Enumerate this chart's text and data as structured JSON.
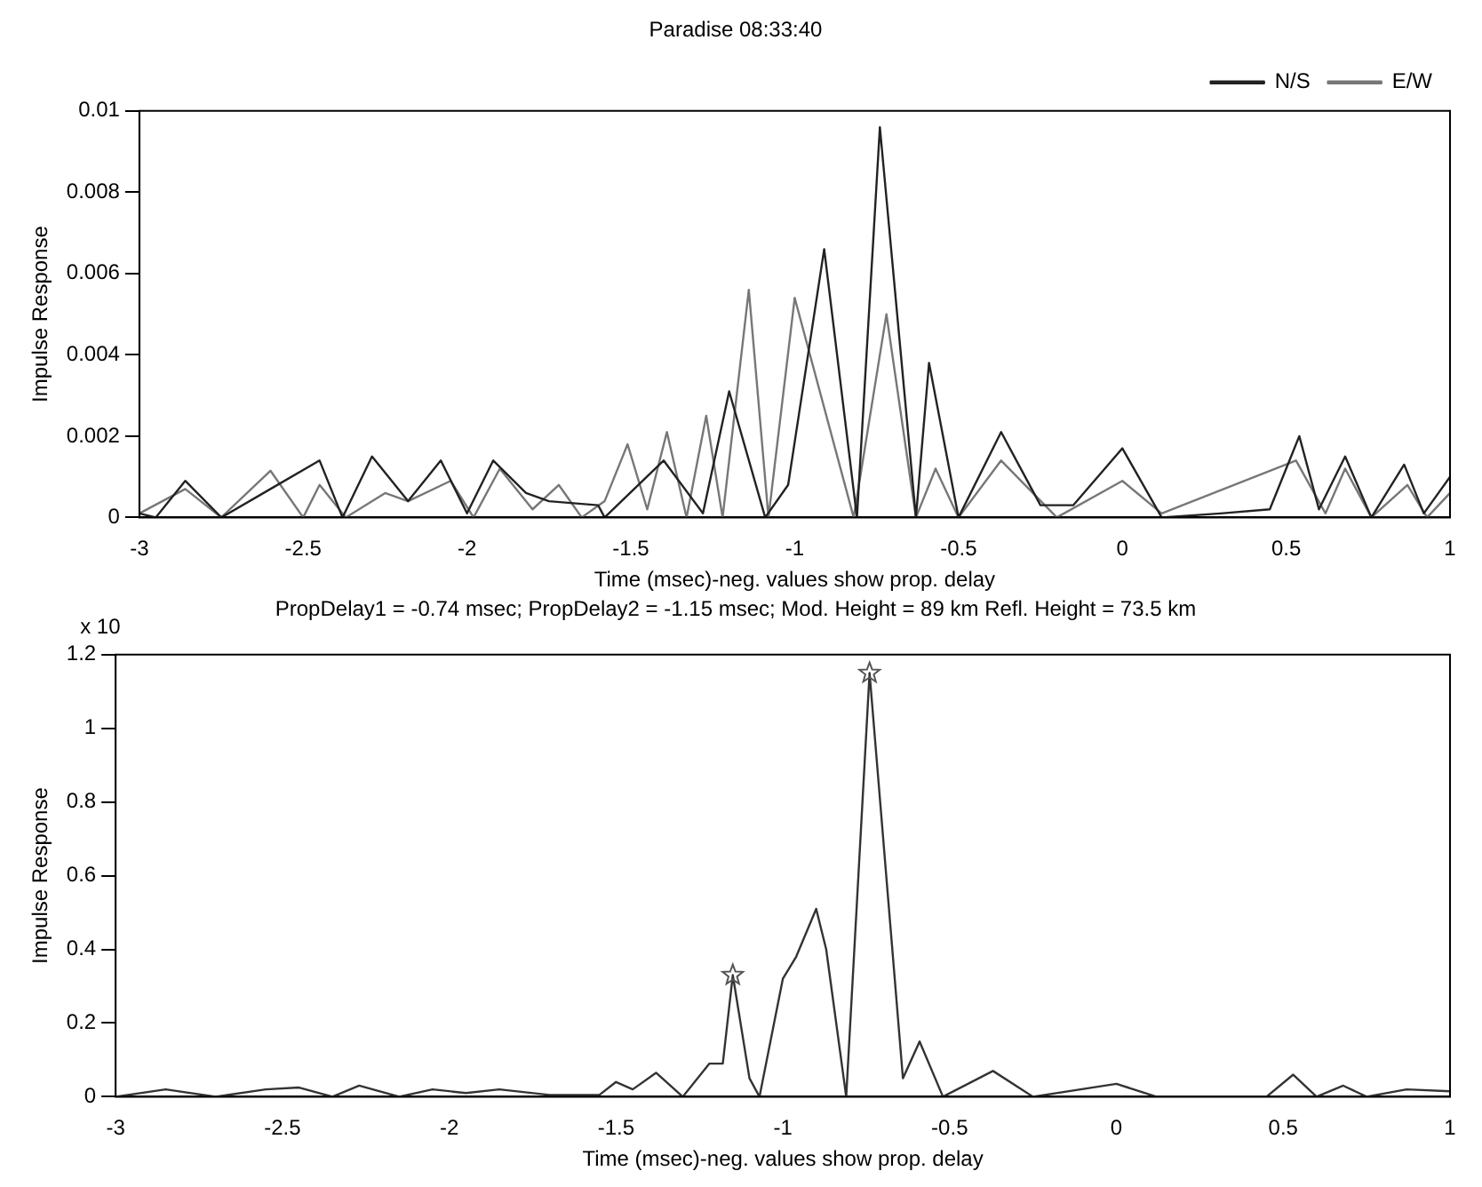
{
  "chart_data": [
    {
      "type": "line",
      "title": "Paradise 08:33:40",
      "xlabel": "Time (msec)-neg. values show prop. delay",
      "ylabel": "Impulse Response",
      "xlim": [
        -3,
        1
      ],
      "xticks": [
        -3,
        -2.5,
        -2,
        -1.5,
        -1,
        -0.5,
        0,
        0.5,
        1
      ],
      "ylim": [
        0,
        0.01
      ],
      "yticks": [
        0,
        0.002,
        0.004,
        0.006,
        0.008,
        0.01
      ],
      "legend": "top right",
      "marker": "none",
      "line_style": "solid",
      "series": [
        {
          "name": "N/S",
          "color": "#222222",
          "x": [
            -3,
            -2.95,
            -2.86,
            -2.75,
            -2.6,
            -2.45,
            -2.38,
            -2.29,
            -2.18,
            -2.08,
            -2,
            -1.92,
            -1.82,
            -1.75,
            -1.6,
            -1.58,
            -1.4,
            -1.28,
            -1.2,
            -1.09,
            -1.02,
            -0.91,
            -0.81,
            -0.74,
            -0.63,
            -0.59,
            -0.5,
            -0.37,
            -0.25,
            -0.15,
            0,
            0.12,
            0.3,
            0.45,
            0.54,
            0.6,
            0.68,
            0.76,
            0.86,
            0.92,
            1
          ],
          "values": [
            0.0001,
            0,
            0.0009,
            0,
            0.0007,
            0.0014,
            0,
            0.0015,
            0.0004,
            0.0014,
            0.0001,
            0.0014,
            0.0006,
            0.0004,
            0.0003,
            0,
            0.0014,
            0.0001,
            0.0031,
            0,
            0.0008,
            0.0066,
            0,
            0.0096,
            0,
            0.0038,
            0,
            0.0021,
            0.0003,
            0.0003,
            0.0017,
            0,
            0.0001,
            0.0002,
            0.002,
            0.0002,
            0.0015,
            0,
            0.0013,
            0.0001,
            0.001
          ]
        },
        {
          "name": "E/W",
          "color": "#777777",
          "x": [
            -3,
            -2.86,
            -2.75,
            -2.6,
            -2.5,
            -2.45,
            -2.37,
            -2.25,
            -2.18,
            -2.05,
            -1.98,
            -1.9,
            -1.8,
            -1.72,
            -1.65,
            -1.58,
            -1.51,
            -1.45,
            -1.39,
            -1.33,
            -1.27,
            -1.22,
            -1.14,
            -1.08,
            -1,
            -0.82,
            -0.72,
            -0.63,
            -0.57,
            -0.5,
            -0.37,
            -0.2,
            0,
            0.12,
            0.53,
            0.62,
            0.68,
            0.76,
            0.87,
            0.93,
            1
          ],
          "values": [
            0.0001,
            0.0007,
            0,
            0.00115,
            0,
            0.0008,
            0,
            0.0006,
            0.0004,
            0.0009,
            0,
            0.0012,
            0.0002,
            0.0008,
            0,
            0.0004,
            0.0018,
            0.0002,
            0.0021,
            0,
            0.0025,
            0,
            0.0056,
            0,
            0.0054,
            0,
            0.005,
            0,
            0.0012,
            0,
            0.0014,
            0,
            0.0009,
            0.0001,
            0.0014,
            0.0001,
            0.0012,
            0,
            0.0008,
            0,
            0.0006
          ]
        }
      ]
    },
    {
      "type": "line",
      "title": "PropDelay1 = -0.74 msec; PropDelay2 = -1.15 msec; Mod. Height = 89 km Refl. Height = 73.5 km",
      "xlabel": "Time (msec)-neg. values show prop. delay",
      "ylabel": "Impulse Response",
      "annotations": [
        "x 10"
      ],
      "xlim": [
        -3,
        1
      ],
      "xticks": [
        -3,
        -2.5,
        -2,
        -1.5,
        -1,
        -0.5,
        0,
        0.5,
        1
      ],
      "ylim": [
        0,
        1.2
      ],
      "yticks": [
        0,
        0.2,
        0.4,
        0.6,
        0.8,
        1,
        1.2
      ],
      "marker": "none",
      "line_style": "solid",
      "series": [
        {
          "color": "#333333",
          "x": [
            -3,
            -2.85,
            -2.7,
            -2.55,
            -2.45,
            -2.35,
            -2.27,
            -2.15,
            -2.05,
            -1.95,
            -1.85,
            -1.7,
            -1.55,
            -1.5,
            -1.45,
            -1.38,
            -1.3,
            -1.22,
            -1.18,
            -1.15,
            -1.1,
            -1.07,
            -1,
            -0.96,
            -0.9,
            -0.87,
            -0.81,
            -0.74,
            -0.64,
            -0.59,
            -0.52,
            -0.37,
            -0.25,
            0,
            0.12,
            0.45,
            0.53,
            0.6,
            0.68,
            0.75,
            0.87,
            1
          ],
          "values": [
            0,
            0.02,
            0,
            0.02,
            0.025,
            0,
            0.03,
            0,
            0.02,
            0.01,
            0.02,
            0.005,
            0.005,
            0.04,
            0.02,
            0.065,
            0,
            0.09,
            0.09,
            0.33,
            0.05,
            0,
            0.32,
            0.38,
            0.51,
            0.4,
            0,
            1.15,
            0.05,
            0.15,
            0,
            0.07,
            0,
            0.035,
            0,
            0,
            0.06,
            0,
            0.03,
            0,
            0.02,
            0.015
          ]
        },
        {
          "type": "scatter",
          "color": "#555555",
          "marker": "star",
          "x": [
            -1.15,
            -0.74
          ],
          "values": [
            0.33,
            1.15
          ]
        }
      ]
    }
  ]
}
